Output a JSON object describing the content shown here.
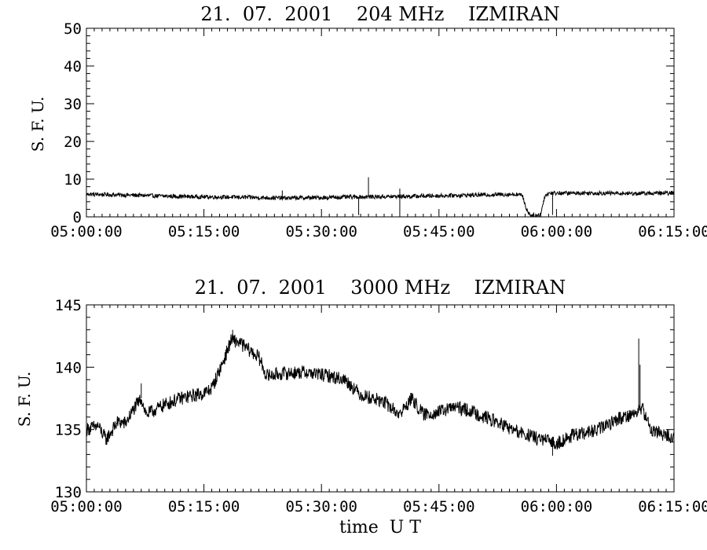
{
  "chart_data": [
    {
      "type": "line",
      "title": "21.  07.  2001    204 MHz    IZMIRAN",
      "ylabel": "S. F. U.",
      "xlabel": "",
      "x_ticks": [
        "05:00:00",
        "05:15:00",
        "05:30:00",
        "05:45:00",
        "06:00:00",
        "06:15:00"
      ],
      "xlim": [
        "05:00:00",
        "06:15:00"
      ],
      "y_ticks": [
        0,
        10,
        20,
        30,
        40,
        50
      ],
      "ylim": [
        0,
        50
      ],
      "series": [
        {
          "color": "#000000",
          "noise": 0.55,
          "points": [
            [
              "05:00:00",
              6.0
            ],
            [
              "05:05:00",
              5.8
            ],
            [
              "05:10:00",
              5.5
            ],
            [
              "05:15:00",
              5.3
            ],
            [
              "05:20:00",
              5.2
            ],
            [
              "05:25:00",
              5.0
            ],
            [
              "05:30:00",
              5.1
            ],
            [
              "05:35:00",
              5.3
            ],
            [
              "05:40:00",
              5.4
            ],
            [
              "05:45:00",
              5.6
            ],
            [
              "05:50:00",
              5.8
            ],
            [
              "05:55:00",
              6.0
            ],
            [
              "05:55:40",
              5.6
            ],
            [
              "05:56:10",
              2.0
            ],
            [
              "05:56:40",
              0.5
            ],
            [
              "05:57:30",
              0.3
            ],
            [
              "05:58:00",
              0.8
            ],
            [
              "05:58:30",
              5.5
            ],
            [
              "05:59:00",
              6.3
            ],
            [
              "06:05:00",
              6.3
            ],
            [
              "06:10:00",
              6.2
            ],
            [
              "06:15:00",
              6.3
            ]
          ],
          "spikes": [
            [
              "05:36:00",
              10.5
            ],
            [
              "05:40:00",
              7.5
            ],
            [
              "05:25:00",
              7.0
            ]
          ],
          "dips": [
            [
              "05:34:45",
              0.5
            ],
            [
              "05:40:00",
              0.8
            ],
            [
              "05:59:30",
              0.5
            ]
          ]
        }
      ]
    },
    {
      "type": "line",
      "title": "21.  07.  2001    3000 MHz    IZMIRAN",
      "ylabel": "S. F. U.",
      "xlabel": "time  U T",
      "x_ticks": [
        "05:00:00",
        "05:15:00",
        "05:30:00",
        "05:45:00",
        "06:00:00",
        "06:15:00"
      ],
      "xlim": [
        "05:00:00",
        "06:15:00"
      ],
      "y_ticks": [
        130,
        135,
        140,
        145
      ],
      "ylim": [
        130,
        145
      ],
      "series": [
        {
          "color": "#000000",
          "noise": 0.55,
          "points": [
            [
              "05:00:00",
              135.0
            ],
            [
              "05:01:30",
              135.3
            ],
            [
              "05:02:30",
              134.2
            ],
            [
              "05:04:00",
              135.6
            ],
            [
              "05:05:00",
              135.5
            ],
            [
              "05:06:00",
              136.6
            ],
            [
              "05:07:00",
              137.5
            ],
            [
              "05:07:40",
              136.2
            ],
            [
              "05:10:00",
              137.0
            ],
            [
              "05:12:00",
              137.5
            ],
            [
              "05:15:00",
              137.9
            ],
            [
              "05:16:00",
              138.3
            ],
            [
              "05:17:30",
              140.5
            ],
            [
              "05:18:30",
              142.2
            ],
            [
              "05:19:30",
              142.0
            ],
            [
              "05:20:30",
              141.5
            ],
            [
              "05:22:00",
              140.8
            ],
            [
              "05:23:00",
              139.3
            ],
            [
              "05:25:00",
              139.5
            ],
            [
              "05:28:00",
              139.6
            ],
            [
              "05:31:00",
              139.3
            ],
            [
              "05:33:00",
              139.0
            ],
            [
              "05:35:00",
              137.8
            ],
            [
              "05:38:00",
              137.2
            ],
            [
              "05:40:00",
              136.2
            ],
            [
              "05:41:30",
              137.5
            ],
            [
              "05:43:00",
              136.2
            ],
            [
              "05:45:00",
              136.4
            ],
            [
              "05:47:00",
              136.8
            ],
            [
              "05:49:00",
              136.5
            ],
            [
              "05:52:00",
              135.7
            ],
            [
              "05:55:00",
              134.8
            ],
            [
              "05:58:00",
              134.2
            ],
            [
              "06:00:00",
              133.9
            ],
            [
              "06:02:00",
              134.5
            ],
            [
              "06:05:00",
              134.9
            ],
            [
              "06:08:00",
              135.9
            ],
            [
              "06:10:00",
              136.3
            ],
            [
              "06:11:00",
              136.7
            ],
            [
              "06:12:00",
              135.0
            ],
            [
              "06:15:00",
              134.3
            ]
          ],
          "spikes": [
            [
              "06:10:30",
              142.3
            ],
            [
              "06:10:40",
              140.2
            ],
            [
              "05:18:40",
              143.0
            ],
            [
              "05:07:00",
              138.7
            ]
          ],
          "dips": [
            [
              "05:02:30",
              133.8
            ],
            [
              "05:59:30",
              132.9
            ]
          ]
        }
      ]
    }
  ]
}
